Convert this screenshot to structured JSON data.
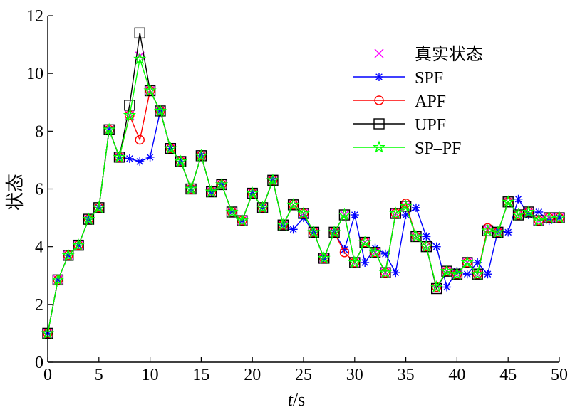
{
  "chart_data": {
    "type": "line",
    "title": "",
    "xlabel": {
      "italic": "t",
      "rest": "/s"
    },
    "ylabel": "状态",
    "xlim": [
      0,
      50
    ],
    "ylim": [
      0,
      12
    ],
    "xticks": [
      0,
      5,
      10,
      15,
      20,
      25,
      30,
      35,
      40,
      45,
      50
    ],
    "yticks": [
      0,
      2,
      4,
      6,
      8,
      10,
      12
    ],
    "grid": false,
    "legend_position": "top-right",
    "x": [
      0,
      1,
      2,
      3,
      4,
      5,
      6,
      7,
      8,
      9,
      10,
      11,
      12,
      13,
      14,
      15,
      16,
      17,
      18,
      19,
      20,
      21,
      22,
      23,
      24,
      25,
      26,
      27,
      28,
      29,
      30,
      31,
      32,
      33,
      34,
      35,
      36,
      37,
      38,
      39,
      40,
      41,
      42,
      43,
      44,
      45,
      46,
      47,
      48,
      49,
      50
    ],
    "series": [
      {
        "name": "真实状态",
        "color": "#ff00ff",
        "marker": "x",
        "line": false,
        "values": [
          1.0,
          2.85,
          3.7,
          4.05,
          4.95,
          5.35,
          8.05,
          7.1,
          8.55,
          10.6,
          9.4,
          8.7,
          7.4,
          6.95,
          6.0,
          7.15,
          5.9,
          6.15,
          5.2,
          4.9,
          5.85,
          5.35,
          6.3,
          4.75,
          5.45,
          5.15,
          4.5,
          3.6,
          4.5,
          5.1,
          3.45,
          4.15,
          3.8,
          3.1,
          5.15,
          5.4,
          4.35,
          4.0,
          2.55,
          3.15,
          3.05,
          3.45,
          3.05,
          4.6,
          4.5,
          5.55,
          5.1,
          5.2,
          4.9,
          5.0,
          5.0
        ]
      },
      {
        "name": "SPF",
        "color": "#0000ff",
        "marker": "star",
        "line": true,
        "values": [
          1.0,
          2.85,
          3.7,
          4.05,
          4.95,
          5.35,
          8.05,
          7.1,
          7.05,
          6.95,
          7.1,
          8.7,
          7.4,
          6.95,
          6.0,
          7.15,
          5.9,
          6.15,
          5.2,
          4.9,
          5.85,
          5.35,
          6.3,
          4.75,
          4.6,
          5.0,
          4.5,
          3.6,
          4.5,
          3.9,
          5.1,
          3.45,
          3.95,
          3.75,
          3.1,
          5.1,
          5.35,
          4.35,
          4.0,
          2.6,
          3.15,
          3.05,
          3.45,
          3.05,
          4.55,
          4.5,
          5.65,
          5.1,
          5.2,
          4.9,
          5.0
        ]
      },
      {
        "name": "APF",
        "color": "#ff0000",
        "marker": "circle",
        "line": true,
        "values": [
          1.0,
          2.85,
          3.7,
          4.05,
          4.95,
          5.35,
          8.05,
          7.1,
          8.55,
          7.7,
          9.4,
          8.7,
          7.4,
          6.95,
          6.0,
          7.15,
          5.9,
          6.15,
          5.2,
          4.9,
          5.85,
          5.35,
          6.3,
          4.75,
          5.45,
          5.15,
          4.5,
          3.6,
          4.5,
          3.8,
          3.45,
          4.15,
          3.8,
          3.1,
          5.15,
          5.5,
          4.35,
          4.0,
          2.6,
          3.15,
          3.05,
          3.45,
          3.05,
          4.65,
          4.5,
          5.55,
          5.1,
          5.2,
          4.9,
          5.0,
          5.0
        ]
      },
      {
        "name": "UPF",
        "color": "#000000",
        "marker": "square",
        "line": true,
        "values": [
          1.0,
          2.85,
          3.7,
          4.05,
          4.95,
          5.35,
          8.05,
          7.1,
          8.9,
          11.4,
          9.4,
          8.7,
          7.4,
          6.95,
          6.0,
          7.15,
          5.9,
          6.15,
          5.2,
          4.9,
          5.85,
          5.35,
          6.3,
          4.75,
          5.45,
          5.15,
          4.5,
          3.6,
          4.5,
          5.1,
          3.45,
          4.15,
          3.8,
          3.1,
          5.15,
          5.4,
          4.35,
          4.0,
          2.55,
          3.15,
          3.05,
          3.45,
          3.05,
          4.55,
          4.5,
          5.55,
          5.1,
          5.2,
          4.9,
          5.0,
          5.0
        ]
      },
      {
        "name": "SP–PF",
        "color": "#00ff00",
        "marker": "pentagram",
        "line": true,
        "values": [
          1.0,
          2.85,
          3.7,
          4.05,
          4.95,
          5.35,
          8.05,
          7.1,
          8.55,
          10.5,
          9.4,
          8.7,
          7.4,
          6.95,
          6.0,
          7.15,
          5.9,
          6.15,
          5.2,
          4.9,
          5.85,
          5.35,
          6.3,
          4.75,
          5.45,
          5.15,
          4.5,
          3.6,
          4.5,
          5.1,
          3.45,
          4.15,
          3.8,
          3.1,
          5.15,
          5.4,
          4.35,
          4.0,
          2.6,
          3.15,
          3.05,
          3.45,
          3.05,
          4.55,
          4.5,
          5.55,
          5.1,
          5.2,
          4.9,
          5.0,
          5.0
        ]
      }
    ]
  }
}
